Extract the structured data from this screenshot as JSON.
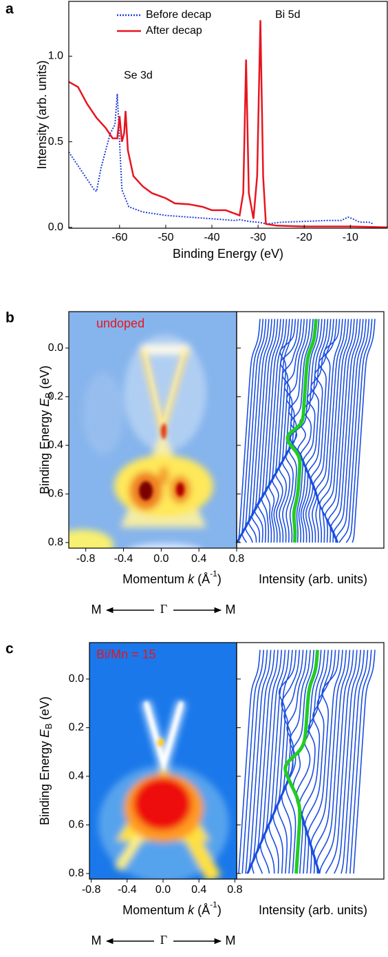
{
  "chart_data": [
    {
      "type": "line",
      "panel_label": "a",
      "x_label": "Binding Energy (eV)",
      "y_label": "Intensity (arb. units)",
      "xlim": [
        -71,
        -2
      ],
      "ylim": [
        -0.005,
        1.32
      ],
      "xticks": [
        -60,
        -50,
        -40,
        -30,
        -20,
        -10
      ],
      "yticks": [
        {
          "value": 0,
          "label": "0.0"
        },
        {
          "value": 0.5,
          "label": "0.5"
        },
        {
          "value": 1,
          "label": "1.0"
        }
      ],
      "annotations": [
        "Se 3d",
        "Bi 5d"
      ],
      "series": [
        {
          "name": "Before decap",
          "color": "#1f3fd6",
          "style": "dotted",
          "x": [
            -71,
            -69,
            -67,
            -65.5,
            -65,
            -64,
            -62,
            -61,
            -60.5,
            -60,
            -59.5,
            -58,
            -55,
            -50,
            -45,
            -40,
            -35,
            -34,
            -32,
            -30,
            -28,
            -25,
            -20,
            -15,
            -12,
            -10.5,
            -9.5,
            -8,
            -6,
            -5
          ],
          "values": [
            0.44,
            0.36,
            0.28,
            0.22,
            0.21,
            0.35,
            0.55,
            0.6,
            0.78,
            0.5,
            0.22,
            0.12,
            0.09,
            0.07,
            0.06,
            0.05,
            0.04,
            0.045,
            0.035,
            0.03,
            0.02,
            0.03,
            0.035,
            0.04,
            0.04,
            0.06,
            0.05,
            0.03,
            0.03,
            0.02
          ]
        },
        {
          "name": "After decap",
          "color": "#e8141e",
          "style": "solid",
          "x": [
            -71,
            -69,
            -67,
            -65,
            -63,
            -61.5,
            -60.5,
            -60,
            -59.5,
            -59,
            -58.7,
            -58.2,
            -57,
            -55,
            -53,
            -50,
            -48,
            -45,
            -42,
            -40,
            -37,
            -35,
            -34,
            -33.2,
            -32.6,
            -32,
            -31,
            -30.2,
            -29.5,
            -28.9,
            -28.3,
            -26,
            -20,
            -10,
            -2
          ],
          "values": [
            0.85,
            0.82,
            0.72,
            0.64,
            0.58,
            0.52,
            0.52,
            0.65,
            0.5,
            0.55,
            0.68,
            0.45,
            0.3,
            0.24,
            0.2,
            0.17,
            0.14,
            0.135,
            0.12,
            0.1,
            0.1,
            0.08,
            0.07,
            0.2,
            0.98,
            0.2,
            0.05,
            0.3,
            1.21,
            0.3,
            0.02,
            0.01,
            0.005,
            0.005,
            0
          ]
        }
      ]
    },
    {
      "type": "heatmap",
      "panel_label": "b",
      "sample_label": "undoped",
      "y_label": [
        "Binding Energy ",
        "E",
        "B",
        " (eV)"
      ],
      "x_label": [
        "Momentum ",
        "k",
        " (Å",
        "-1",
        ")"
      ],
      "x2_label": "Intensity (arb. units)",
      "direction_labels": [
        "M",
        "Γ",
        "M"
      ],
      "xlim": [
        -0.98,
        0.8
      ],
      "ylim": [
        -0.15,
        0.823
      ],
      "y_inverted": true,
      "xticks": [
        -0.8,
        -0.4,
        {
          "value": 0,
          "label": "0.0"
        },
        0.4,
        0.8
      ],
      "yticks": [
        {
          "value": 0,
          "label": "0.0"
        },
        0.2,
        0.4,
        0.6,
        0.8
      ]
    },
    {
      "type": "heatmap",
      "panel_label": "c",
      "sample_label": "Bi/Mn = 15",
      "y_label": [
        "Binding Energy ",
        "E",
        "B",
        " (eV)"
      ],
      "x_label": [
        "Momentum ",
        "k",
        " (Å",
        "-1",
        ")"
      ],
      "x2_label": "Intensity (arb. units)",
      "direction_labels": [
        "M",
        "Γ",
        "M"
      ],
      "xlim": [
        -0.82,
        0.82
      ],
      "ylim": [
        -0.15,
        0.823
      ],
      "y_inverted": true,
      "xticks": [
        -0.8,
        -0.4,
        {
          "value": 0,
          "label": "0.0"
        },
        0.4,
        0.8
      ],
      "yticks": [
        {
          "value": 0,
          "label": "0.0"
        },
        0.2,
        0.4,
        0.6,
        0.8
      ]
    }
  ]
}
